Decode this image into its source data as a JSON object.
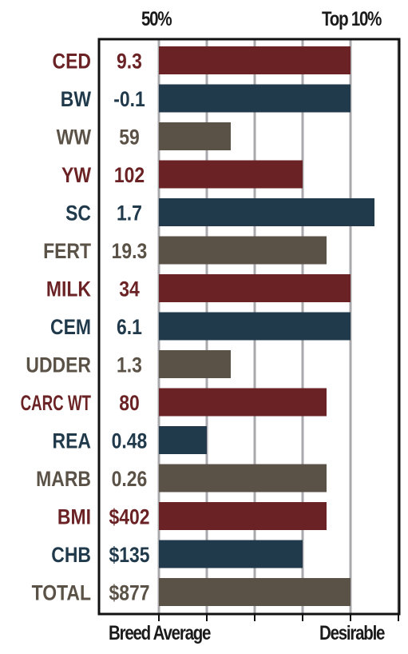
{
  "header": {
    "left": "50%",
    "right": "Top 10%"
  },
  "footer": {
    "left": "Breed Average",
    "right": "Desirable"
  },
  "colors": {
    "maternal_red": "#6b2225",
    "production_blue": "#203a4c",
    "gray_brown": "#5b5247",
    "grid": "#a9a9ad",
    "frame": "#111111"
  },
  "chart_data": {
    "type": "bar",
    "orientation": "horizontal",
    "scale": {
      "min": 0,
      "max": 5,
      "tick_count": 5
    },
    "grid": true,
    "rows": [
      {
        "trait": "CED",
        "value_label": "9.3",
        "bar": 4.0,
        "color": "maternal_red"
      },
      {
        "trait": "BW",
        "value_label": "-0.1",
        "bar": 4.0,
        "color": "production_blue"
      },
      {
        "trait": "WW",
        "value_label": "59",
        "bar": 1.5,
        "color": "gray_brown"
      },
      {
        "trait": "YW",
        "value_label": "102",
        "bar": 3.0,
        "color": "maternal_red"
      },
      {
        "trait": "SC",
        "value_label": "1.7",
        "bar": 4.5,
        "color": "production_blue"
      },
      {
        "trait": "FERT",
        "value_label": "19.3",
        "bar": 3.5,
        "color": "gray_brown"
      },
      {
        "trait": "MILK",
        "value_label": "34",
        "bar": 4.0,
        "color": "maternal_red"
      },
      {
        "trait": "CEM",
        "value_label": "6.1",
        "bar": 4.0,
        "color": "production_blue"
      },
      {
        "trait": "UDDER",
        "value_label": "1.3",
        "bar": 1.5,
        "color": "gray_brown"
      },
      {
        "trait": "CARC WT",
        "value_label": "80",
        "bar": 3.5,
        "color": "maternal_red"
      },
      {
        "trait": "REA",
        "value_label": "0.48",
        "bar": 1.0,
        "color": "production_blue"
      },
      {
        "trait": "MARB",
        "value_label": "0.26",
        "bar": 3.5,
        "color": "gray_brown"
      },
      {
        "trait": "BMI",
        "value_label": "$402",
        "bar": 3.5,
        "color": "maternal_red"
      },
      {
        "trait": "CHB",
        "value_label": "$135",
        "bar": 3.0,
        "color": "production_blue"
      },
      {
        "trait": "TOTAL",
        "value_label": "$877",
        "bar": 4.0,
        "color": "gray_brown"
      }
    ]
  }
}
